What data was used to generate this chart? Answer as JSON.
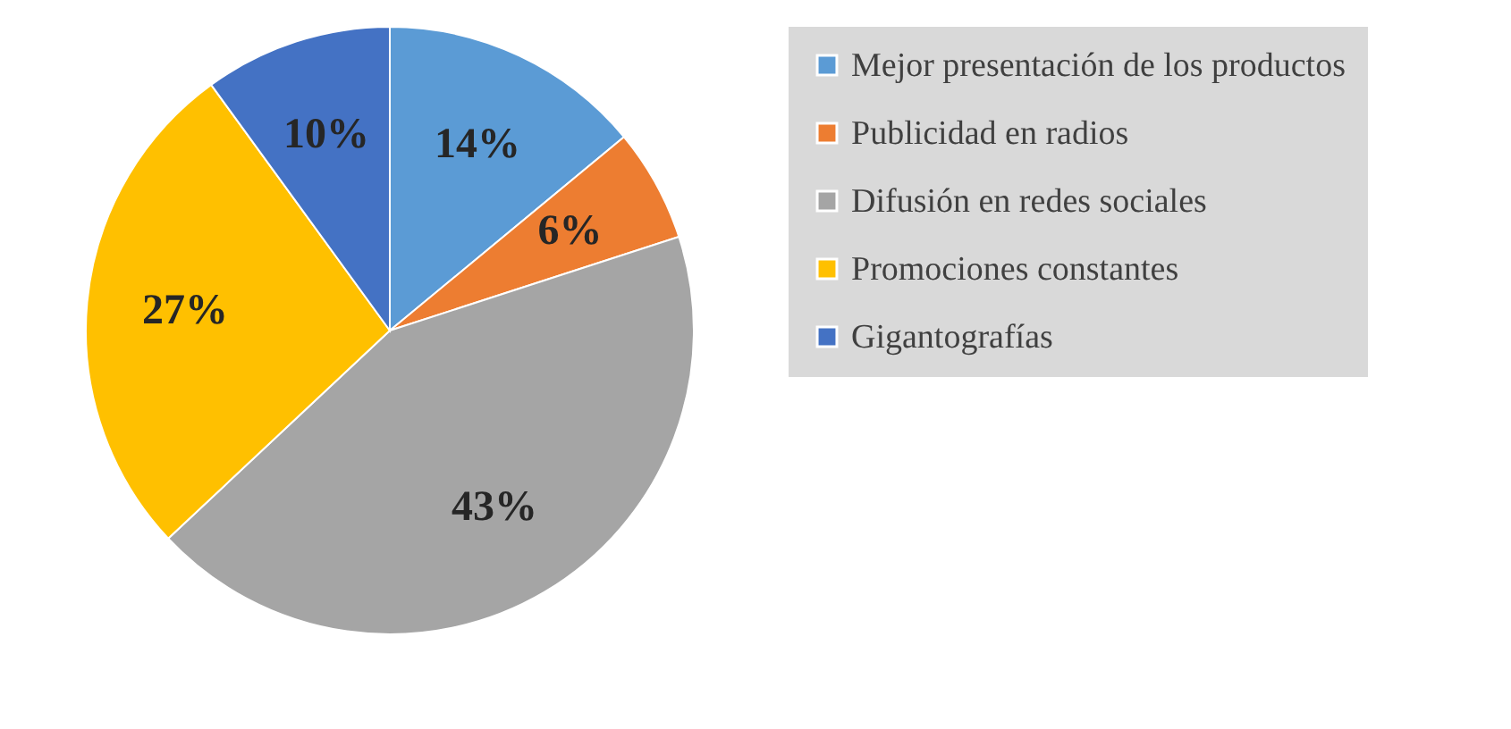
{
  "chart_data": {
    "type": "pie",
    "categories": [
      "Mejor presentación de los productos",
      "Publicidad en radios",
      "Difusión en redes sociales",
      "Promociones constantes",
      "Gigantografías"
    ],
    "values": [
      14,
      6,
      43,
      27,
      10
    ],
    "colors": [
      "#5b9bd5",
      "#ed7d31",
      "#a5a5a5",
      "#ffc000",
      "#4472c4"
    ],
    "value_labels": [
      "14%",
      "6%",
      "43%",
      "27%",
      "10%"
    ],
    "legend": "right"
  }
}
